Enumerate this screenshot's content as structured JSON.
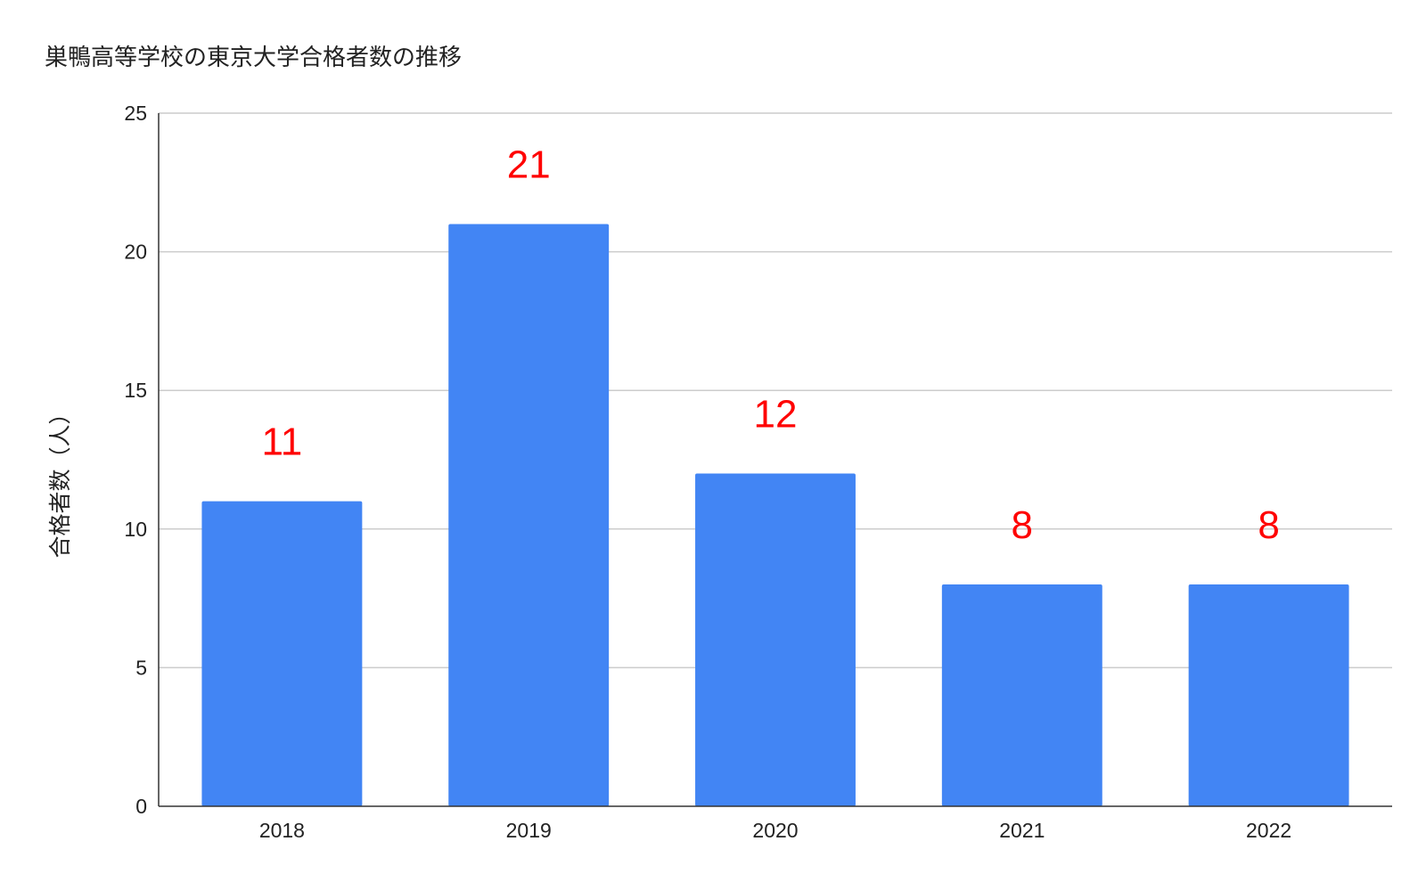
{
  "chart_data": {
    "type": "bar",
    "title": "巣鴨高等学校の東京大学合格者数の推移",
    "xlabel": "",
    "ylabel": "合格者数（人）",
    "categories": [
      "2018",
      "2019",
      "2020",
      "2021",
      "2022"
    ],
    "values": [
      11,
      21,
      12,
      8,
      8
    ],
    "data_labels": [
      "11",
      "21",
      "12",
      "8",
      "8"
    ],
    "ylim": [
      0,
      25
    ],
    "yticks": [
      0,
      5,
      10,
      15,
      20,
      25
    ],
    "ytick_labels": [
      "0",
      "5",
      "10",
      "15",
      "20",
      "25"
    ],
    "grid": true,
    "legend": "none",
    "colors": {
      "bar": "#4285F4",
      "data_label": "#FF0000",
      "grid": "#CCCCCC",
      "axis": "#333333"
    }
  }
}
